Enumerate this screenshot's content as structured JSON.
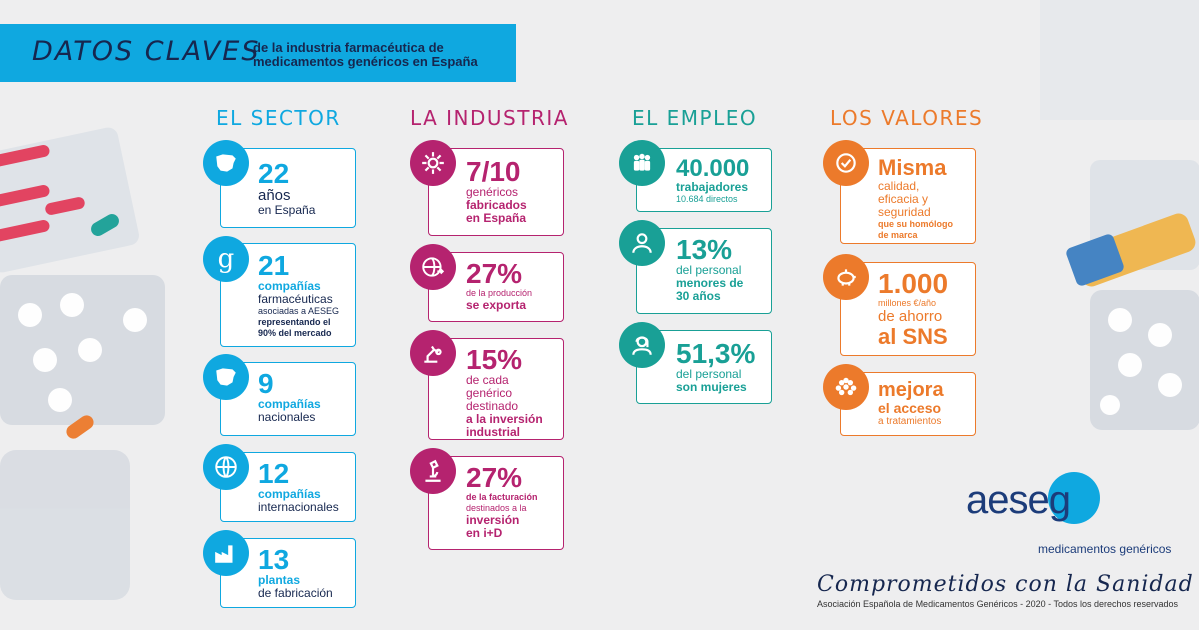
{
  "banner": {
    "title": "DATOS CLAVES",
    "subtitle_line1": "de la industria farmacéutica de",
    "subtitle_line2": "medicamentos genéricos en España"
  },
  "columns": {
    "sector": {
      "heading": "EL SECTOR"
    },
    "industria": {
      "heading": "LA INDUSTRIA"
    },
    "empleo": {
      "heading": "EL EMPLEO"
    },
    "valores": {
      "heading": "LOS VALORES"
    }
  },
  "sector": [
    {
      "n": "22",
      "a": "años",
      "b": "en España"
    },
    {
      "n": "21",
      "a": "compañías",
      "b": "farmacéuticas",
      "c": "asociadas a AESEG",
      "d": "representando el",
      "e": "90% del mercado"
    },
    {
      "n": "9",
      "a": "compañías",
      "b": "nacionales"
    },
    {
      "n": "12",
      "a": "compañías",
      "b": "internacionales"
    },
    {
      "n": "13",
      "a": "plantas",
      "b": "de fabricación"
    }
  ],
  "industria": [
    {
      "n": "7/10",
      "a": "genéricos",
      "b": "fabricados",
      "c": "en España"
    },
    {
      "n": "27%",
      "a": "de la producción",
      "b": "se exporta"
    },
    {
      "n": "15%",
      "a": "de cada",
      "b": "genérico",
      "c": "destinado",
      "d": "a la inversión",
      "e": "industrial"
    },
    {
      "n": "27%",
      "a": "de la facturación",
      "b": "destinados a la",
      "c": "inversión",
      "d": "en i+D"
    }
  ],
  "empleo": [
    {
      "n": "40.000",
      "a": "trabajadores",
      "b": "10.684 directos"
    },
    {
      "n": "13%",
      "a": "del personal",
      "b": "menores de",
      "c": "30 años"
    },
    {
      "n": "51,3%",
      "a": "del personal",
      "b": "son mujeres"
    }
  ],
  "valores": [
    {
      "n": "Misma",
      "a": "calidad,",
      "b": "eficacia y",
      "c": "seguridad",
      "d": "que su homólogo",
      "e": "de marca"
    },
    {
      "n": "1.000",
      "a": "millones €/año",
      "b": "de ahorro",
      "c": "al SNS"
    },
    {
      "n": "mejora",
      "a": "el acceso",
      "b": "a tratamientos"
    }
  ],
  "footer": {
    "logo_word": "aeseg",
    "logo_sub1": "medicamentos",
    "logo_sub2": "genéricos",
    "tagline": "Comprometidos con la Sanidad",
    "copyright": "Asociación Española de Medicamentos Genéricos - 2020 - Todos los derechos reservados"
  },
  "colors": {
    "blue": "#0fa8e0",
    "magenta": "#b5236f",
    "teal": "#19a096",
    "orange": "#ec7a2b",
    "navy": "#16274f"
  }
}
